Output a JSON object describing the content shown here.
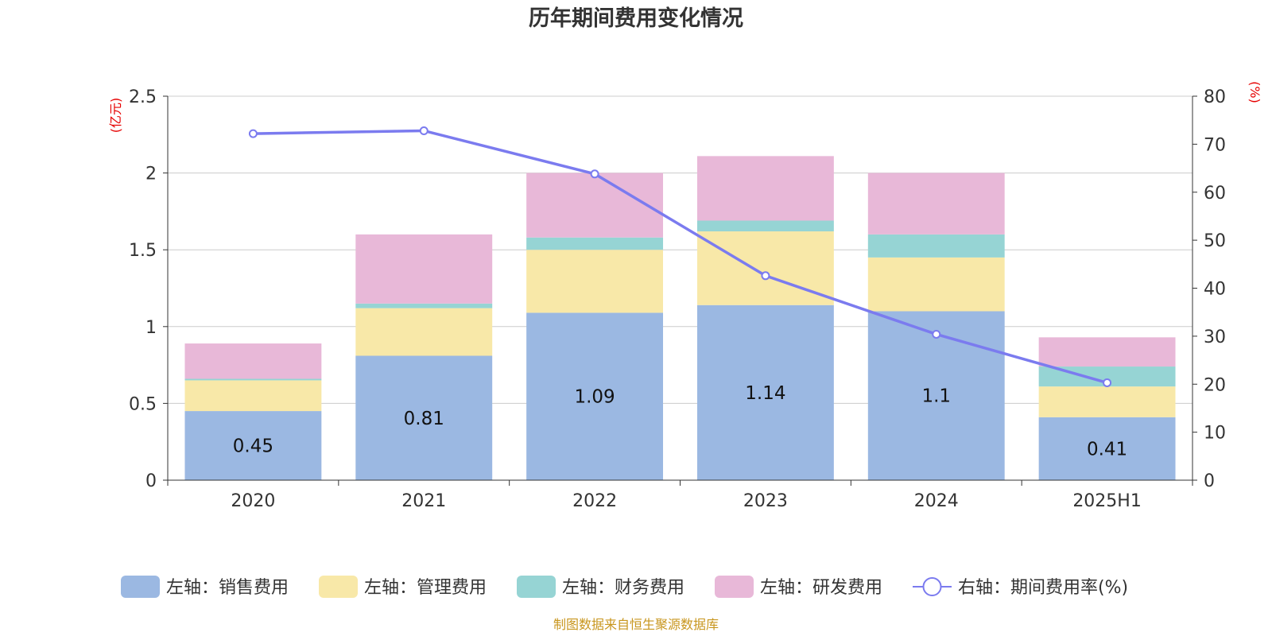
{
  "chart_data": {
    "type": "bar",
    "stacked": true,
    "title": "历年期间费用变化情况",
    "categories": [
      "2020",
      "2021",
      "2022",
      "2023",
      "2024",
      "2025H1"
    ],
    "left_axis": {
      "unit": "(亿元)",
      "ylim": [
        0,
        2.5
      ],
      "ticks": [
        "0",
        "0.5",
        "1",
        "1.5",
        "2",
        "2.5"
      ]
    },
    "right_axis": {
      "unit": "(%)",
      "ylim": [
        0,
        80
      ],
      "ticks": [
        "0",
        "10",
        "20",
        "30",
        "40",
        "50",
        "60",
        "70",
        "80"
      ]
    },
    "series": [
      {
        "name": "左轴：销售费用",
        "axis": "left",
        "color": "#9bb8e2",
        "values": [
          0.45,
          0.81,
          1.09,
          1.14,
          1.1,
          0.41
        ],
        "labels": [
          "0.45",
          "0.81",
          "1.09",
          "1.14",
          "1.1",
          "0.41"
        ]
      },
      {
        "name": "左轴：管理费用",
        "axis": "left",
        "color": "#f8e8a8",
        "values": [
          0.2,
          0.31,
          0.41,
          0.48,
          0.35,
          0.2
        ]
      },
      {
        "name": "左轴：财务费用",
        "axis": "left",
        "color": "#96d4d4",
        "values": [
          0.01,
          0.03,
          0.08,
          0.07,
          0.15,
          0.13
        ]
      },
      {
        "name": "左轴：研发费用",
        "axis": "left",
        "color": "#e8b8d8",
        "values": [
          0.23,
          0.45,
          0.42,
          0.42,
          0.4,
          0.19
        ]
      },
      {
        "name": "右轴：期间费用率(%)",
        "axis": "right",
        "type": "line",
        "color": "#7b7bef",
        "values": [
          72.2,
          72.8,
          63.8,
          42.6,
          30.4,
          20.3
        ]
      }
    ],
    "grid": true,
    "legend_position": "bottom"
  },
  "source_note": "制图数据来自恒生聚源数据库"
}
